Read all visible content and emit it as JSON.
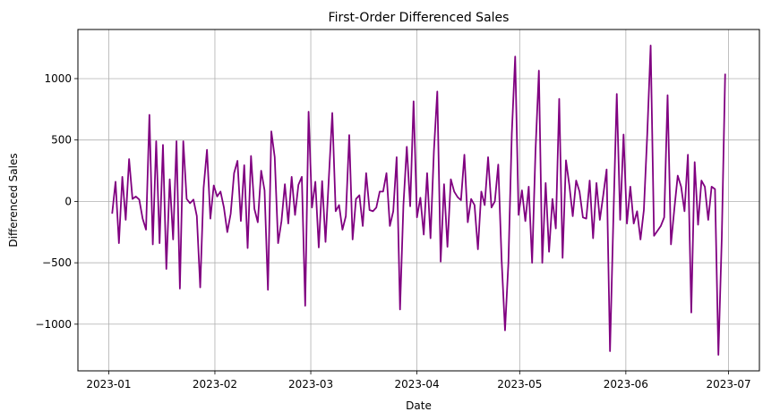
{
  "chart_data": {
    "type": "line",
    "title": "First-Order Differenced Sales",
    "xlabel": "Date",
    "ylabel": "Differenced Sales",
    "x_tick_labels": [
      "2023-01",
      "2023-02",
      "2023-03",
      "2023-04",
      "2023-05",
      "2023-06",
      "2023-07"
    ],
    "x_tick_dates": [
      "2023-01-01",
      "2023-02-01",
      "2023-03-01",
      "2023-04-01",
      "2023-05-01",
      "2023-06-01",
      "2023-07-01"
    ],
    "y_tick_labels": [
      "−1000",
      "−500",
      "0",
      "500",
      "1000"
    ],
    "y_tick_values": [
      -1000,
      -500,
      0,
      500,
      1000
    ],
    "xlim": [
      "2022-12-23",
      "2023-07-10"
    ],
    "ylim": [
      -1380,
      1400
    ],
    "grid": true,
    "line_color": "#800080",
    "series": [
      {
        "x_start": "2023-01-02",
        "x_end": "2023-06-30",
        "x_step": "1 day",
        "values": [
          -100,
          160,
          -340,
          200,
          -150,
          345,
          20,
          40,
          15,
          -140,
          -230,
          705,
          -350,
          490,
          -340,
          460,
          -550,
          180,
          -310,
          490,
          -710,
          490,
          20,
          -15,
          15,
          -120,
          -700,
          110,
          420,
          -140,
          130,
          40,
          80,
          -50,
          -250,
          -100,
          230,
          330,
          -160,
          295,
          -380,
          370,
          -60,
          -170,
          250,
          90,
          -720,
          570,
          360,
          -340,
          -160,
          140,
          -180,
          200,
          -110,
          135,
          200,
          -850,
          730,
          -50,
          160,
          -375,
          165,
          -330,
          200,
          720,
          -80,
          -30,
          -230,
          -120,
          540,
          -310,
          20,
          50,
          -200,
          230,
          -70,
          -80,
          -50,
          80,
          80,
          230,
          -200,
          -80,
          360,
          -880,
          -30,
          445,
          -40,
          815,
          -130,
          30,
          -270,
          230,
          -300,
          410,
          895,
          -490,
          140,
          -370,
          180,
          80,
          35,
          10,
          380,
          -170,
          20,
          -30,
          -390,
          80,
          -30,
          360,
          -50,
          0,
          300,
          -480,
          -1050,
          -500,
          550,
          1180,
          -110,
          90,
          -160,
          120,
          -500,
          410,
          1065,
          -500,
          150,
          -410,
          20,
          -220,
          835,
          -460,
          335,
          130,
          -120,
          170,
          80,
          -130,
          -140,
          170,
          -300,
          150,
          -150,
          50,
          260,
          -1220,
          -130,
          875,
          -150,
          545,
          -180,
          120,
          -180,
          -80,
          -310,
          -70,
          550,
          1270,
          -280,
          -240,
          -200,
          -130,
          865,
          -350,
          -60,
          210,
          120,
          -80,
          380,
          -905,
          320,
          -190,
          170,
          120,
          -150,
          120,
          100,
          -1250,
          -300,
          1040
        ]
      }
    ]
  }
}
